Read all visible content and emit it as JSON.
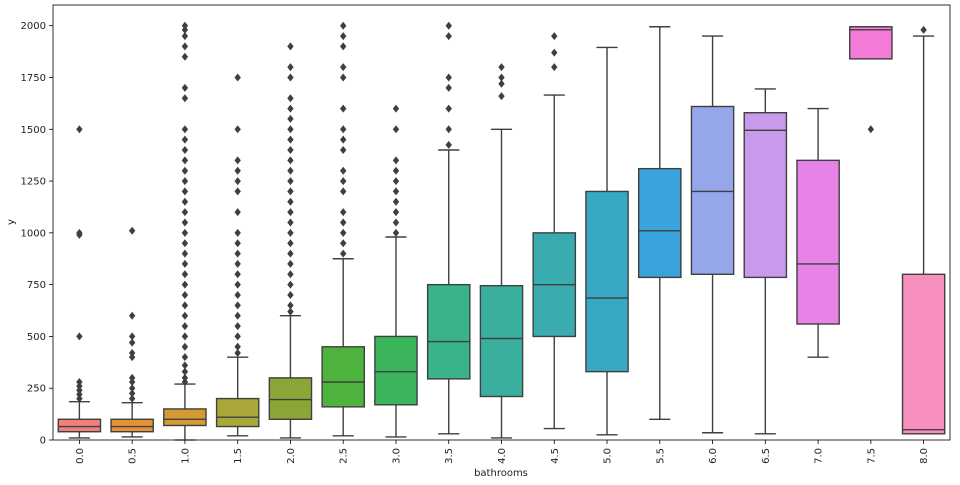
{
  "chart_data": {
    "type": "boxplot",
    "xlabel": "bathrooms",
    "ylabel": "y",
    "ylim": [
      0,
      2100
    ],
    "yticks": [
      0,
      250,
      500,
      750,
      1000,
      1250,
      1500,
      1750,
      2000
    ],
    "ytick_labels": [
      "0",
      "250",
      "500",
      "750",
      "1000",
      "1250",
      "1500",
      "1750",
      "2000"
    ],
    "grid": false,
    "categories": [
      "0.0",
      "0.5",
      "1.0",
      "1.5",
      "2.0",
      "2.5",
      "3.0",
      "3.5",
      "4.0",
      "4.5",
      "5.0",
      "5.5",
      "6.0",
      "6.5",
      "7.0",
      "7.5",
      "8.0"
    ],
    "boxes": [
      {
        "label": "0.0",
        "color": "#f27e7e",
        "whisker_low": 10,
        "q1": 40,
        "median": 65,
        "q3": 100,
        "whisker_high": 185,
        "outliers": [
          200,
          220,
          240,
          260,
          280,
          500,
          990,
          1000,
          1500
        ]
      },
      {
        "label": "0.5",
        "color": "#e59137",
        "whisker_low": 15,
        "q1": 40,
        "median": 65,
        "q3": 100,
        "whisker_high": 180,
        "outliers": [
          200,
          225,
          250,
          280,
          300,
          400,
          420,
          470,
          500,
          600,
          1010
        ]
      },
      {
        "label": "1.0",
        "color": "#d49a34",
        "whisker_low": 0,
        "q1": 70,
        "median": 100,
        "q3": 150,
        "whisker_high": 270,
        "outliers": [
          280,
          300,
          330,
          360,
          400,
          450,
          500,
          550,
          600,
          650,
          700,
          750,
          800,
          850,
          900,
          950,
          1000,
          1050,
          1100,
          1150,
          1200,
          1250,
          1300,
          1350,
          1400,
          1450,
          1500,
          1650,
          1700,
          1850,
          1900,
          1950,
          1980,
          2000
        ]
      },
      {
        "label": "1.5",
        "color": "#a9a73a",
        "whisker_low": 20,
        "q1": 65,
        "median": 110,
        "q3": 200,
        "whisker_high": 400,
        "outliers": [
          420,
          450,
          500,
          550,
          600,
          650,
          700,
          750,
          800,
          850,
          900,
          950,
          1000,
          1100,
          1200,
          1250,
          1300,
          1350,
          1500,
          1750
        ]
      },
      {
        "label": "2.0",
        "color": "#8ba637",
        "whisker_low": 10,
        "q1": 100,
        "median": 195,
        "q3": 300,
        "whisker_high": 600,
        "outliers": [
          620,
          650,
          700,
          750,
          800,
          850,
          900,
          950,
          1000,
          1050,
          1100,
          1150,
          1200,
          1250,
          1300,
          1350,
          1400,
          1450,
          1500,
          1550,
          1600,
          1650,
          1750,
          1800,
          1900
        ]
      },
      {
        "label": "2.5",
        "color": "#4eb33d",
        "whisker_low": 20,
        "q1": 160,
        "median": 280,
        "q3": 450,
        "whisker_high": 875,
        "outliers": [
          900,
          950,
          1000,
          1050,
          1100,
          1200,
          1250,
          1300,
          1400,
          1450,
          1500,
          1600,
          1750,
          1800,
          1900,
          1950,
          2000
        ]
      },
      {
        "label": "3.0",
        "color": "#3ab55c",
        "whisker_low": 15,
        "q1": 170,
        "median": 330,
        "q3": 500,
        "whisker_high": 980,
        "outliers": [
          1000,
          1050,
          1100,
          1150,
          1200,
          1250,
          1300,
          1350,
          1500,
          1600
        ]
      },
      {
        "label": "3.5",
        "color": "#39b38a",
        "whisker_low": 30,
        "q1": 295,
        "median": 475,
        "q3": 750,
        "whisker_high": 1400,
        "outliers": [
          1425,
          1500,
          1600,
          1700,
          1750,
          1950,
          2000
        ]
      },
      {
        "label": "4.0",
        "color": "#3aaf9e",
        "whisker_low": 10,
        "q1": 210,
        "median": 490,
        "q3": 745,
        "whisker_high": 1500,
        "outliers": [
          1660,
          1720,
          1750,
          1800
        ]
      },
      {
        "label": "4.5",
        "color": "#3aacaf",
        "whisker_low": 55,
        "q1": 500,
        "median": 750,
        "q3": 1000,
        "whisker_high": 1665,
        "outliers": [
          1800,
          1870,
          1950
        ]
      },
      {
        "label": "5.0",
        "color": "#38a9c2",
        "whisker_low": 25,
        "q1": 330,
        "median": 685,
        "q3": 1200,
        "whisker_high": 1895,
        "outliers": []
      },
      {
        "label": "5.5",
        "color": "#3aa3dd",
        "whisker_low": 100,
        "q1": 785,
        "median": 1010,
        "q3": 1310,
        "whisker_high": 1995,
        "outliers": []
      },
      {
        "label": "6.0",
        "color": "#95a7ea",
        "whisker_low": 35,
        "q1": 800,
        "median": 1200,
        "q3": 1610,
        "whisker_high": 1950,
        "outliers": []
      },
      {
        "label": "6.5",
        "color": "#c99aeb",
        "whisker_low": 30,
        "q1": 785,
        "median": 1495,
        "q3": 1580,
        "whisker_high": 1695,
        "outliers": []
      },
      {
        "label": "7.0",
        "color": "#e783e6",
        "whisker_low": 400,
        "q1": 560,
        "median": 850,
        "q3": 1350,
        "whisker_high": 1600,
        "outliers": []
      },
      {
        "label": "7.5",
        "color": "#f57bd9",
        "whisker_low": 1840,
        "q1": 1840,
        "median": 1980,
        "q3": 1995,
        "whisker_high": 1995,
        "outliers": [
          1500
        ]
      },
      {
        "label": "8.0",
        "color": "#f68fbd",
        "whisker_low": 30,
        "q1": 30,
        "median": 50,
        "q3": 800,
        "whisker_high": 1950,
        "outliers": [
          1980
        ]
      }
    ]
  }
}
